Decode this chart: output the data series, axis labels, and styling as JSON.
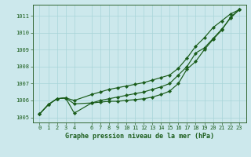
{
  "xlabel": "Graphe pression niveau de la mer (hPa)",
  "bg_color": "#cce8ec",
  "grid_color": "#a8d4d8",
  "line_color": "#1a5c1a",
  "spine_color": "#336633",
  "hours": [
    0,
    1,
    2,
    3,
    4,
    6,
    7,
    8,
    9,
    10,
    11,
    12,
    13,
    14,
    15,
    16,
    17,
    18,
    19,
    20,
    21,
    22,
    23
  ],
  "line1": [
    1005.2,
    1005.75,
    1006.1,
    1006.15,
    1006.0,
    1006.35,
    1006.5,
    1006.65,
    1006.75,
    1006.85,
    1006.95,
    1007.05,
    1007.2,
    1007.35,
    1007.5,
    1007.9,
    1008.5,
    1009.2,
    1009.7,
    1010.3,
    1010.7,
    1011.1,
    1011.35
  ],
  "line2": [
    1005.2,
    1005.75,
    1006.1,
    1006.15,
    1005.8,
    1005.85,
    1006.0,
    1006.1,
    1006.2,
    1006.3,
    1006.4,
    1006.5,
    1006.65,
    1006.8,
    1007.0,
    1007.5,
    1008.0,
    1008.8,
    1009.1,
    1009.65,
    1010.2,
    1010.85,
    1011.35
  ],
  "line3": [
    1005.2,
    1005.75,
    1006.1,
    1006.15,
    1005.25,
    1005.85,
    1005.9,
    1005.95,
    1005.95,
    1006.0,
    1006.05,
    1006.1,
    1006.2,
    1006.35,
    1006.55,
    1007.0,
    1007.85,
    1008.3,
    1009.0,
    1009.6,
    1010.15,
    1010.9,
    1011.35
  ],
  "ylim_min": 1004.7,
  "ylim_max": 1011.65,
  "yticks": [
    1005,
    1006,
    1007,
    1008,
    1009,
    1010,
    1011
  ],
  "xticks": [
    0,
    1,
    2,
    3,
    4,
    6,
    7,
    8,
    9,
    10,
    11,
    12,
    13,
    14,
    15,
    16,
    17,
    18,
    19,
    20,
    21,
    22,
    23
  ],
  "tick_fontsize": 5.0,
  "xlabel_fontsize": 6.0
}
